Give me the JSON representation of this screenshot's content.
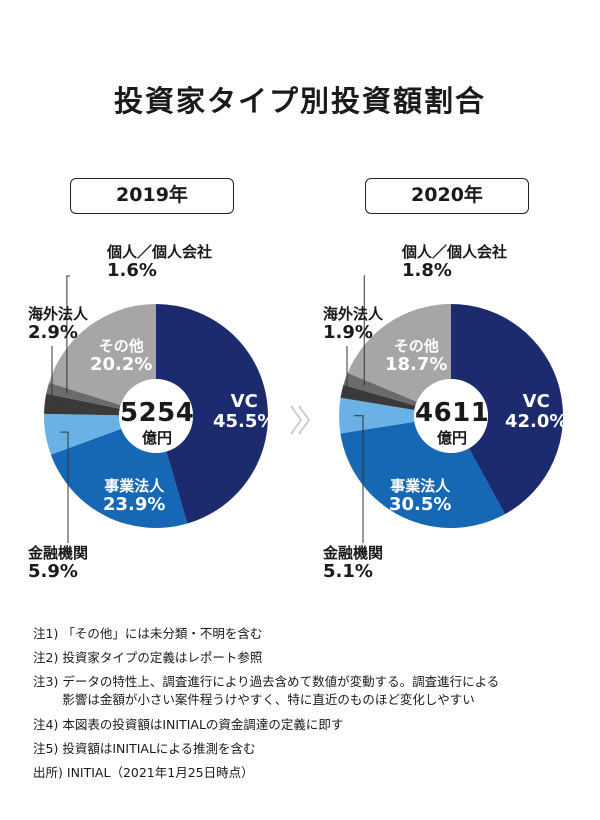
{
  "title": "投資家タイプ別投資額割合",
  "chart_data": [
    {
      "type": "pie",
      "title": "2019年",
      "total": "5254",
      "total_unit": "億円",
      "slices": [
        {
          "name": "VC",
          "value": 45.5,
          "label": "45.5%",
          "color": "#1c2a6e"
        },
        {
          "name": "事業法人",
          "value": 23.9,
          "label": "23.9%",
          "color": "#1668b4"
        },
        {
          "name": "金融機関",
          "value": 5.9,
          "label": "5.9%",
          "color": "#6ab2e6"
        },
        {
          "name": "海外法人",
          "value": 2.9,
          "label": "2.9%",
          "color": "#3a3a3a"
        },
        {
          "name": "個人／個人会社",
          "value": 1.6,
          "label": "1.6%",
          "color": "#6b6b6b"
        },
        {
          "name": "その他",
          "value": 20.2,
          "label": "20.2%",
          "color": "#a6a6a6"
        }
      ]
    },
    {
      "type": "pie",
      "title": "2020年",
      "total": "4611",
      "total_unit": "億円",
      "slices": [
        {
          "name": "VC",
          "value": 42.0,
          "label": "42.0%",
          "color": "#1c2a6e"
        },
        {
          "name": "事業法人",
          "value": 30.5,
          "label": "30.5%",
          "color": "#1668b4"
        },
        {
          "name": "金融機関",
          "value": 5.1,
          "label": "5.1%",
          "color": "#6ab2e6"
        },
        {
          "name": "海外法人",
          "value": 1.9,
          "label": "1.9%",
          "color": "#3a3a3a"
        },
        {
          "name": "個人／個人会社",
          "value": 1.8,
          "label": "1.8%",
          "color": "#6b6b6b"
        },
        {
          "name": "その他",
          "value": 18.7,
          "label": "18.7%",
          "color": "#a6a6a6"
        }
      ]
    }
  ],
  "notes": [
    {
      "prefix": "注1)",
      "text": "「その他」には未分類・不明を含む"
    },
    {
      "prefix": "注2)",
      "text": "投資家タイプの定義はレポート参照"
    },
    {
      "prefix": "注3)",
      "text": "データの特性上、調査進行により過去含めて数値が変動する。調査進行による\n影響は金額が小さい案件程うけやすく、特に直近のものほど変化しやすい"
    },
    {
      "prefix": "注4)",
      "text": "本図表の投資額はINITIALの資金調達の定義に即す"
    },
    {
      "prefix": "注5)",
      "text": "投資額はINITIALによる推測を含む"
    },
    {
      "prefix": "出所)",
      "text": "INITIAL（2021年1月25日時点）"
    }
  ]
}
